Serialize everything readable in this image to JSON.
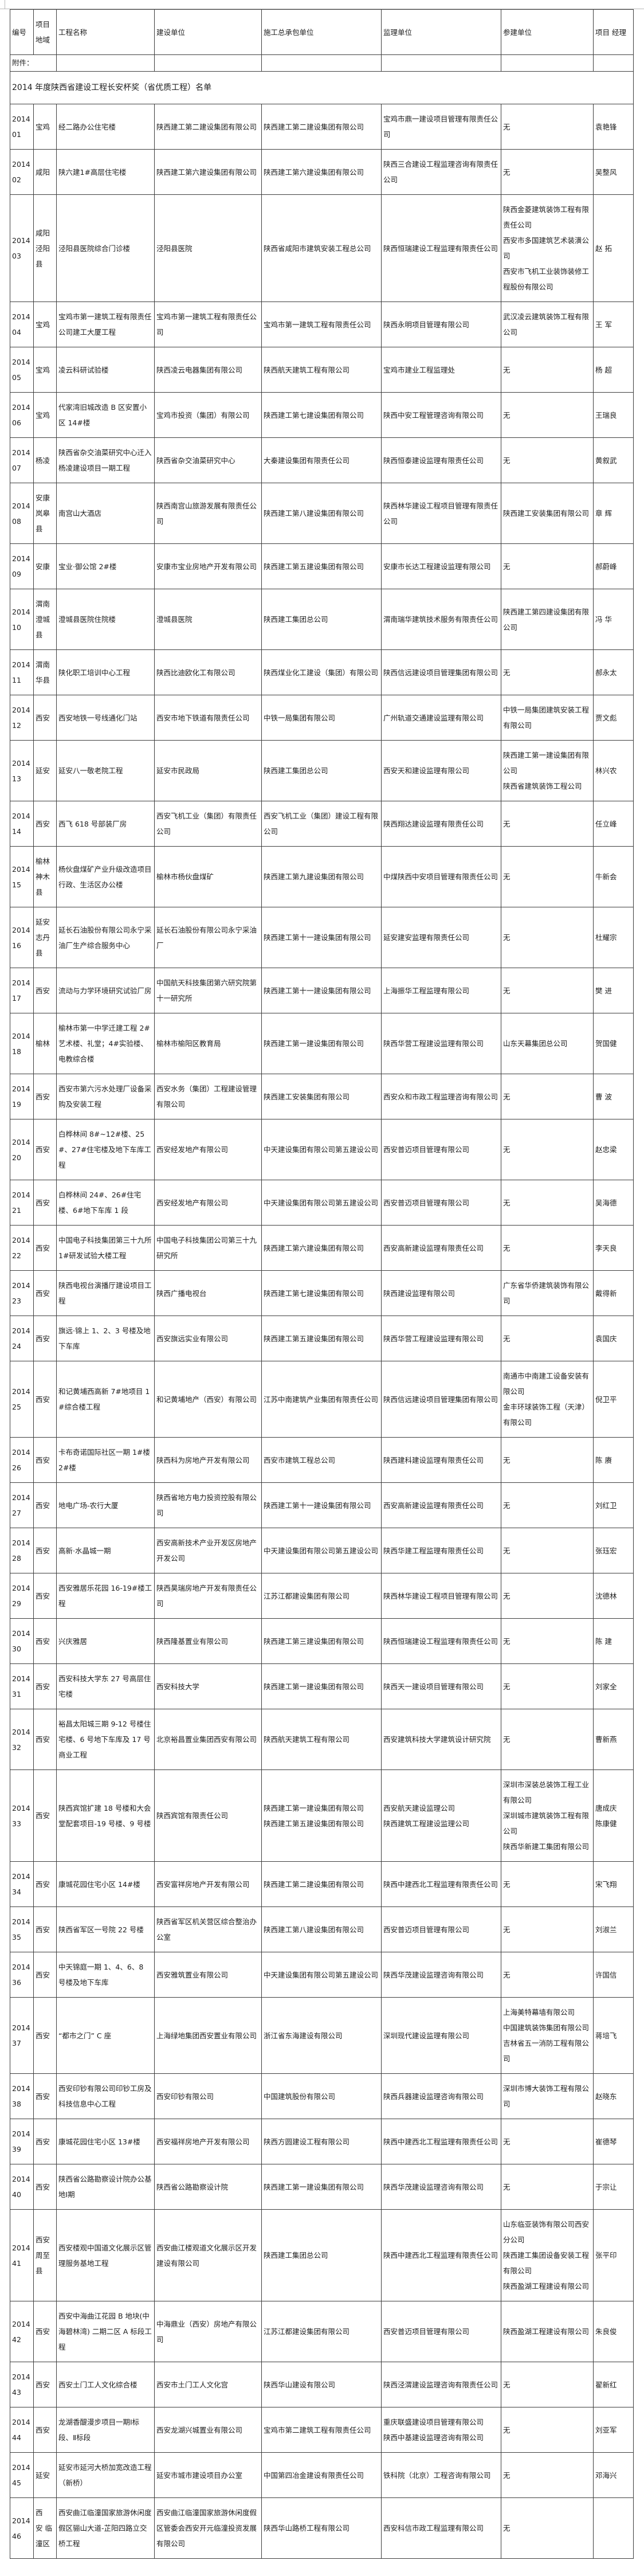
{
  "page": {
    "attachment_label": "附件：",
    "title": "2014 年度陕西省建设工程长安杯奖（省优质工程）名单"
  },
  "table": {
    "headers": [
      "编号",
      "项目\n地域",
      "工程名称",
      "建设单位",
      "施工总承包单位",
      "监理单位",
      "参建单位",
      "项目 经理"
    ],
    "rows": [
      {
        "id": "201401",
        "region": "宝鸡",
        "project": "经二路办公住宅楼",
        "builder": "陕西建工第二建设集团有限公司",
        "contractor": "陕西建工第二建设集团有限公司",
        "supervisor": "宝鸡市鼎一建设项目管理有限责任公司",
        "participants": "无",
        "manager": "袁艳锋"
      },
      {
        "id": "201402",
        "region": "咸阳",
        "project": "陕六建1#高层住宅楼",
        "builder": "陕西建工第六建设集团有限公司",
        "contractor": "陕西建工第六建设集团有限公司",
        "supervisor": "陕西三合建设工程监理咨询有限责任公司",
        "participants": "无",
        "manager": "吴整风"
      },
      {
        "id": "201403",
        "region": "咸阳\n泾阳\n县",
        "project": "泾阳县医院综合门诊楼",
        "builder": "泾阳县医院",
        "contractor": "陕西省咸阳市建筑安装工程总公司",
        "supervisor": "陕西恒瑞建设工程监理有限责任公司",
        "participants": [
          "陕西金菱建筑装饰工程有限责任公司",
          "西安市多国建筑艺术装潢公司",
          "西安市飞机工业装饰装修工程股份有限公司"
        ],
        "manager": "赵 拓"
      },
      {
        "id": "201404",
        "region": "宝鸡",
        "project": "宝鸡市第一建筑工程有限责任公司建工大厦工程",
        "builder": "宝鸡市第一建筑工程有限责任公司",
        "contractor": "宝鸡市第一建筑工程有限责任公司",
        "supervisor": "陕西永明项目管理有限公司",
        "participants": "武汉凌云建筑装饰工程有限公司",
        "manager": "王 军"
      },
      {
        "id": "201405",
        "region": "宝鸡",
        "project": "凌云科研试验楼",
        "builder": "陕西凌云电器集团有限公司",
        "contractor": "陕西航天建筑工程有限公司",
        "supervisor": "宝鸡市建业工程监理处",
        "participants": "无",
        "manager": "杨 超"
      },
      {
        "id": "201406",
        "region": "宝鸡",
        "project": "代家湾旧城改造 B 区安置小区 14#楼",
        "builder": "宝鸡市投资（集团）有限公司",
        "contractor": "陕西建工第七建设集团有限公司",
        "supervisor": "陕西中安工程管理咨询有限公司",
        "participants": "无",
        "manager": "王瑞良"
      },
      {
        "id": "201407",
        "region": "杨凌",
        "project": "陕西省杂交油菜研究中心迁入杨凌建设项目一期工程",
        "builder": "陕西省杂交油菜研究中心",
        "contractor": "大秦建设集团有限责任公司",
        "supervisor": "陕西恒泰建设监理有限责任公司",
        "participants": "无",
        "manager": "黄叙武"
      },
      {
        "id": "201408",
        "region": "安康\n岚皋\n县",
        "project": "南宫山大酒店",
        "builder": "陕西南宫山旅游发展有限责任公司",
        "contractor": "陕西建工第八建设集团有限公司",
        "supervisor": "陕西林华建设工程项目管理有限责任公司",
        "participants": "陕西建工安装集团有限公司",
        "manager": "章 辉"
      },
      {
        "id": "201409",
        "region": "安康",
        "project": "宝业·御公馆 2#楼",
        "builder": "安康市宝业房地产开发有限公司",
        "contractor": "陕西建工第五建设集团有限公司",
        "supervisor": "安康市长达工程建设监理有限公司",
        "participants": "无",
        "manager": "郝蔚峰"
      },
      {
        "id": "201410",
        "region": "渭南\n澄城\n县",
        "project": "澄城县医院住院楼",
        "builder": "澄城县医院",
        "contractor": "陕西建工集团总公司",
        "supervisor": "渭南瑞华建筑技术服务有限责任公司",
        "participants": "陕西建工第四建设集团有限公司",
        "manager": "冯 华"
      },
      {
        "id": "201411",
        "region": "渭南\n华县",
        "project": "陕化职工培训中心工程",
        "builder": "陕西比迪欧化工有限公司",
        "contractor": "陕西煤业化工建设（集团）有限公司",
        "supervisor": "陕西信远建设项目管理集团有限公司",
        "participants": "无",
        "manager": "郝永太"
      },
      {
        "id": "201412",
        "region": "西安",
        "project": "西安地铁一号线通化门站",
        "builder": "西安市地下铁道有限责任公司",
        "contractor": "中铁一局集团有限公司",
        "supervisor": "广州轨道交通建设监理有限公司",
        "participants": "中铁一局集团建筑安装工程有限公司",
        "manager": "贾文彪"
      },
      {
        "id": "201413",
        "region": "延安",
        "project": "延安八一敬老院工程",
        "builder": "延安市民政局",
        "contractor": "陕西建工集团总公司",
        "supervisor": "西安天和建设监理有限公司",
        "participants": [
          "陕西建工第一建设集团有限公司",
          "陕西省建筑装饰工程公司"
        ],
        "manager": "林兴农"
      },
      {
        "id": "201414",
        "region": "西安",
        "project": "西飞 618 号部装厂房",
        "builder": "西安飞机工业（集团）有限责任公司",
        "contractor": "西安飞机工业（集团）建设工程有限公司",
        "supervisor": "陕西翔达建设监理有限责任公司",
        "participants": "无",
        "manager": "任立峰"
      },
      {
        "id": "201415",
        "region": "榆林\n神木\n县",
        "project": "杨伙盘煤矿产业升级改造项目行政、生活区办公楼",
        "builder": "榆林市杨伙盘煤矿",
        "contractor": "陕西建工第九建设集团有限公司",
        "supervisor": "中煤陕西中安项目管理有限责任公司",
        "participants": "无",
        "manager": "牛新会"
      },
      {
        "id": "201416",
        "region": "延安\n志丹\n县",
        "project": "延长石油股份有限公司永宁采油厂生产综合服务中心",
        "builder": "延长石油股份有限公司永宁采油厂",
        "contractor": "陕西建工第十一建设集团有限公司",
        "supervisor": "延安建安监理有限责任公司",
        "participants": "无",
        "manager": "杜耀宗"
      },
      {
        "id": "201417",
        "region": "西安",
        "project": "流动与力学环境研究试验厂房",
        "builder": "中国航天科技集团第六研究院第十一研究所",
        "contractor": "陕西建工第十一建设集团有限公司",
        "supervisor": "上海振华工程监理有限公司",
        "participants": "无",
        "manager": "樊 进"
      },
      {
        "id": "201418",
        "region": "榆林",
        "project": "榆林市第一中学迁建工程 2#艺术楼、礼堂；4#实验楼、电教综合楼",
        "builder": "榆林市榆阳区教育局",
        "contractor": "陕西建工第一建设集团有限公司",
        "supervisor": "陕西华营工程建设监理有限公司",
        "participants": "山东天幕集团总公司",
        "manager": "贺国健"
      },
      {
        "id": "201419",
        "region": "西安",
        "project": "西安市第六污水处理厂设备采购及安装工程",
        "builder": "西安水务（集团）工程建设管理有限公司",
        "contractor": "陕西建工安装集团有限公司",
        "supervisor": "西安众和市政工程监理咨询有限公司",
        "participants": "无",
        "manager": "曹 波"
      },
      {
        "id": "201420",
        "region": "西安",
        "project": "白桦林间 8#~12#楼、25#、27#住宅楼及地下车库工程",
        "builder": "西安经发地产有限公司",
        "contractor": "中天建设集团有限公司第五建设公司",
        "supervisor": "西安普迈项目管理有限公司",
        "participants": "无",
        "manager": "赵忠梁"
      },
      {
        "id": "201421",
        "region": "西安",
        "project": "白桦林间 24#、26#住宅楼、6#地下车库 1 段",
        "builder": "西安经发地产有限公司",
        "contractor": "中天建设集团有限公司第五建设公司",
        "supervisor": "西安普迈项目管理有限公司",
        "participants": "无",
        "manager": "吴海德"
      },
      {
        "id": "201422",
        "region": "西安",
        "project": "中国电子科技集团第三十九所 1#研发试验大楼工程",
        "builder": "中国电子科技集团公司第三十九研究所",
        "contractor": "陕西建工第六建设集团有限公司",
        "supervisor": "西安高新建设监理有限责任公司",
        "participants": "无",
        "manager": "李天良"
      },
      {
        "id": "201423",
        "region": "西安",
        "project": "陕西电视台演播厅建设项目工程",
        "builder": "陕西广播电视台",
        "contractor": "陕西建工第七建设集团有限公司",
        "supervisor": "陕西建设监理有限公司",
        "participants": "广东省华侨建筑装饰有限公司",
        "manager": "戴得新"
      },
      {
        "id": "201424",
        "region": "西安",
        "project": "旗远·锦上 1、2、3 号楼及地下车库",
        "builder": "西安旗远实业有限公司",
        "contractor": "陕西建工第五建设集团有限公司",
        "supervisor": "陕西华营工程建设监理有限公司",
        "participants": "无",
        "manager": "袁国庆"
      },
      {
        "id": "201425",
        "region": "西安",
        "project": "和记黄埔西高新 7#地项目 1#综合楼工程",
        "builder": "和记黄埔地产（西安）有限公司",
        "contractor": "江苏中南建筑产业集团有限责任公司",
        "supervisor": "陕西信远建设项目管理集团有限公司",
        "participants": [
          "南通市中南建工设备安装有限公司",
          "金丰环球装饰工程（天津）有限公司"
        ],
        "manager": "倪卫平"
      },
      {
        "id": "201426",
        "region": "西安",
        "project": "卡布奇诺国际社区一期 1#楼 2#楼",
        "builder": "陕西科为房地产开发有限公司",
        "contractor": "西安市建筑工程总公司",
        "supervisor": "陕西建科建设监理有限责任公司",
        "participants": "无",
        "manager": "陈 赓"
      },
      {
        "id": "201427",
        "region": "西安",
        "project": "地电广场-农行大厦",
        "builder": "陕西省地方电力投资控股有限公司",
        "contractor": "陕西建工第十一建设集团有限公司",
        "supervisor": "西安高新建设监理有限责任公司",
        "participants": "无",
        "manager": "刘红卫"
      },
      {
        "id": "201428",
        "region": "西安",
        "project": "高新·水晶城一期",
        "builder": "西安高新技术产业开发区房地产开发公司",
        "contractor": "中天建设集团有限公司第五建设公司",
        "supervisor": "陕西华建工程监理有限责任公司",
        "participants": "无",
        "manager": "张珏宏"
      },
      {
        "id": "201429",
        "region": "西安",
        "project": "西安雅居乐花园 16-19#楼工程",
        "builder": "陕西昊瑞房地产开发有限责任公司",
        "contractor": "江苏江都建设集团有限公司",
        "supervisor": "陕西林华建设工程项目管理有限公司",
        "participants": "无",
        "manager": "沈德林"
      },
      {
        "id": "201430",
        "region": "西安",
        "project": "兴庆雅居",
        "builder": "陕西隆基置业有限公司",
        "contractor": "陕西建工第三建设集团有限公司",
        "supervisor": "陕西恒瑞建设工程监理有限责任公司",
        "participants": "无",
        "manager": "陈 建"
      },
      {
        "id": "201431",
        "region": "西安",
        "project": "西安科技大学东 27 号高层住宅楼",
        "builder": "西安科技大学",
        "contractor": "陕西建工第一建设集团有限公司",
        "supervisor": "陕西天一建设项目管理有限公司",
        "participants": "无",
        "manager": "刘家全"
      },
      {
        "id": "201432",
        "region": "西安",
        "project": "裕昌太阳城三期 9-12 号楼住宅楼、6 号地下车库及 17 号商业工程",
        "builder": "北京裕昌置业集团西安有限公司",
        "contractor": "陕西航天建筑工程有限公司",
        "supervisor": "西安建筑科技大学建筑设计研究院",
        "participants": "无",
        "manager": "曹新燕"
      },
      {
        "id": "201433",
        "region": "西安",
        "project": "陕西宾馆扩建 18 号楼和大会堂配套项目-19 号楼、9 号楼",
        "builder": "陕西宾馆有限责任公司",
        "contractor": [
          "陕西建工第一建设集团有限公司",
          "陕西建工第五建设集团有限公司"
        ],
        "supervisor": [
          "西安航天建设监理公司",
          "陕西建筑工程建设监理公司"
        ],
        "participants": [
          "深圳市深装总装饰工程工业有限公司",
          "深圳城市建筑装饰工程有限公司",
          "陕西华新建工集团有限公司"
        ],
        "manager": [
          "唐成庆",
          "陈康健"
        ]
      },
      {
        "id": "201434",
        "region": "西安",
        "project": "康城花园住宅小区 14#楼",
        "builder": "西安富祥房地产开发有限公司",
        "contractor": "陕西建工第二建设集团有限公司",
        "supervisor": "陕西中建西北工程监理有限责任公司",
        "participants": "无",
        "manager": "宋飞翔"
      },
      {
        "id": "201435",
        "region": "西安",
        "project": "陕西省军区一号院 22 号楼",
        "builder": "陕西省军区机关营区综合整治办公室",
        "contractor": "陕西建工第八建设集团有限公司",
        "supervisor": "西安普迈项目管理有限公司",
        "participants": "无",
        "manager": "刘淑兰"
      },
      {
        "id": "201436",
        "region": "西安",
        "project": "中天锦庭一期 1、4、6、8 号楼及地下车库",
        "builder": "西安雅筑置业有限公司",
        "contractor": "中天建设集团有限公司第五建设公司",
        "supervisor": "陕西华茂建设监理咨询有限公司",
        "participants": "无",
        "manager": "许国信"
      },
      {
        "id": "201437",
        "region": "西安",
        "project": "“都市之门” C 座",
        "builder": "上海绿地集团西安置业有限公司",
        "contractor": "浙江省东海建设有限公司",
        "supervisor": "深圳现代建设监理有限公司",
        "participants": [
          "上海美特幕墙有限公司",
          "中国建筑装饰集团有限公司",
          "吉林省五一消防工程有限公司"
        ],
        "manager": "蒋培飞"
      },
      {
        "id": "201438",
        "region": "西安",
        "project": "西安印钞有限公司印钞工房及科技信息中心工程",
        "builder": "西安印钞有限公司",
        "contractor": "中国建筑股份有限公司",
        "supervisor": "陕西兵器建设监理咨询有限公司",
        "participants": "深圳市博大装饰工程有限公司",
        "manager": "赵晓东"
      },
      {
        "id": "201439",
        "region": "西安",
        "project": "康城花园住宅小区 13#楼",
        "builder": "西安福祥房地产开发有限公司",
        "contractor": "陕西方圆建设工程有限公司",
        "supervisor": "陕西中建西北工程监理有限责任公司",
        "participants": "无",
        "manager": "崔德琴"
      },
      {
        "id": "201440",
        "region": "西安",
        "project": "陕西省公路勘察设计院办公基地Ⅰ期",
        "builder": "陕西省公路勘察设计院",
        "contractor": "陕西建工第一建设集团有限公司",
        "supervisor": "陕西华茂建设监理咨询有限公司",
        "participants": "无",
        "manager": "于宗让"
      },
      {
        "id": "201441",
        "region": "西安\n周至\n县",
        "project": "西安楼观中国道文化展示区管理服务基地工程",
        "builder": "西安曲江楼观道文化展示区开发建设有限公司",
        "contractor": "陕西建工集团总公司",
        "supervisor": "陕西中建西北工程监理有限责任公司",
        "participants": [
          "山东临亚装饰有限公司西安分公司",
          "陕西建工集团设备安装工程有限公司",
          "陕西盈湖工程建设有限公司"
        ],
        "manager": "张平印"
      },
      {
        "id": "201442",
        "region": "西安",
        "project": "西安中海曲江花园 B 地块(中海碧林湾) 二期二区 A 标段工程",
        "builder": "中海鼎业（西安）房地产有限公司",
        "contractor": "江苏江都建设集团有限公司",
        "supervisor": "西安普迈项目管理有限公司",
        "participants": "陕西盈湖工程建设有限公司",
        "manager": "朱良俊"
      },
      {
        "id": "201443",
        "region": "西安",
        "project": "西安土门工人文化综合楼",
        "builder": "西安市土门工人文化宫",
        "contractor": "陕西华山建设有限公司",
        "supervisor": "陕西泾渭建设监理咨询有限责任公司",
        "participants": "无",
        "manager": "翟新红"
      },
      {
        "id": "201444",
        "region": "西安",
        "project": "龙湖香醍漫步项目一期Ⅰ标段、Ⅱ标段",
        "builder": "西安龙湖兴城置业有限公司",
        "contractor": "宝鸡市第二建筑工程有限责任公司",
        "supervisor": [
          "重庆联盛建设项目管理有限公司",
          "陕西中基建设监理咨询有限公司"
        ],
        "participants": "无",
        "manager": "刘亚军"
      },
      {
        "id": "201445",
        "region": "延安",
        "project": "延安市延河大桥加宽改造工程（新桥）",
        "builder": "延安市城市建设项目办公室",
        "contractor": "中国第四冶金建设有限责任公司",
        "supervisor": "铁科院（北京）工程咨询有限公司",
        "participants": "无",
        "manager": "邓海兴"
      },
      {
        "id": "201446",
        "region": "西\n安 临\n潼区",
        "project": "西安曲江临潼国家旅游休闲度假区骊山大道-芷阳四路立交桥工程",
        "builder": "西安曲江临潼国家旅游休闲度假区管委会西安开元临潼投资发展有限公司",
        "contractor": "陕西华山路桥工程有限公司",
        "supervisor": "西安科信市政工程监理有限公司",
        "participants": "无",
        "manager": ""
      }
    ]
  }
}
